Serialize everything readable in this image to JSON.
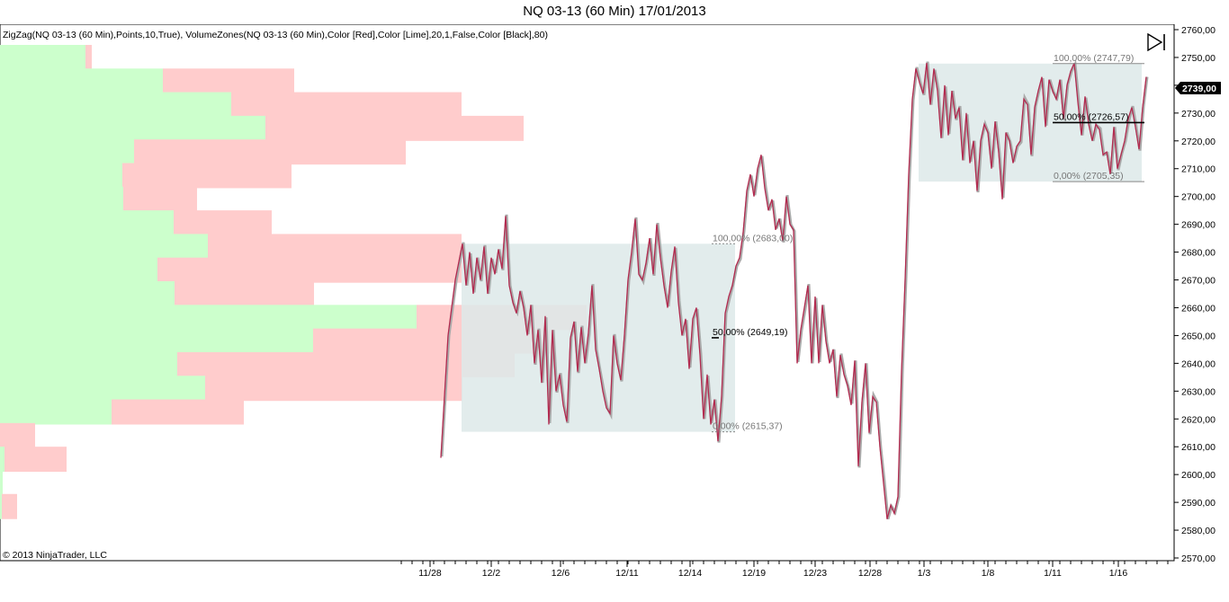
{
  "title": "NQ 03-13 (60 Min)  17/01/2013",
  "indicator_label": "ZigZag(NQ 03-13 (60 Min),Points,10,True), VolumeZones(NQ 03-13 (60 Min),Color [Red],Color [Lime],20,1,False,Color [Black],80)",
  "copyright": "© 2013 NinjaTrader, LLC",
  "icons": {
    "scroll_to_end": "play-to-end-icon"
  },
  "colors": {
    "zigzag": "#b22a4f",
    "price": "#aaaaaa",
    "zone_up": "#ccffcc",
    "zone_down": "#ffcccc",
    "fib_box": "#dde9e9",
    "current_price_bg": "#000000"
  },
  "chart_data": {
    "type": "line",
    "ylim": [
      2570,
      2760
    ],
    "y_ticks": [
      "2760,00",
      "2750,00",
      "2740,00",
      "2730,00",
      "2720,00",
      "2710,00",
      "2700,00",
      "2690,00",
      "2680,00",
      "2670,00",
      "2660,00",
      "2650,00",
      "2640,00",
      "2630,00",
      "2620,00",
      "2610,00",
      "2600,00",
      "2590,00",
      "2580,00",
      "2570,00"
    ],
    "x_ticks": [
      "11/28",
      "12/2",
      "12/6",
      "12/11",
      "12/14",
      "12/19",
      "12/23",
      "12/28",
      "1/3",
      "1/8",
      "1/11",
      "1/16"
    ],
    "current_price": "2739,00",
    "volume_zones": [
      {
        "price": 2750,
        "up": 95,
        "down": 7
      },
      {
        "price": 2741.5,
        "up": 181,
        "down": 146
      },
      {
        "price": 2733,
        "up": 257,
        "down": 256
      },
      {
        "price": 2724.5,
        "up": 295,
        "down": 287
      },
      {
        "price": 2716,
        "up": 149,
        "down": 302
      },
      {
        "price": 2707.5,
        "up": 136,
        "down": 188
      },
      {
        "price": 2699,
        "up": 137,
        "down": 82
      },
      {
        "price": 2690.5,
        "up": 193,
        "down": 109
      },
      {
        "price": 2682,
        "up": 231,
        "down": 282
      },
      {
        "price": 2673.5,
        "up": 175,
        "down": 338
      },
      {
        "price": 2665,
        "up": 194,
        "down": 155
      },
      {
        "price": 2656.5,
        "up": 463,
        "down": 189
      },
      {
        "price": 2648,
        "up": 348,
        "down": 265
      },
      {
        "price": 2639.5,
        "up": 197,
        "down": 375
      },
      {
        "price": 2631,
        "up": 228,
        "down": 286
      },
      {
        "price": 2622.5,
        "up": 124,
        "down": 147
      },
      {
        "price": 2614,
        "up": 0,
        "down": 39
      },
      {
        "price": 2605.5,
        "up": 5,
        "down": 69
      },
      {
        "price": 2597,
        "up": 3,
        "down": 0
      },
      {
        "price": 2588.5,
        "up": 2,
        "down": 17
      }
    ],
    "fibonacci": [
      {
        "levels": [
          {
            "pct": "100,00%",
            "value": 2683.0,
            "label": "100,00% (2683,00)"
          },
          {
            "pct": "50,00%",
            "value": 2649.19,
            "label": "50,00% (2649,19)"
          },
          {
            "pct": "0,00%",
            "value": 2615.37,
            "label": "0,00% (2615,37)"
          }
        ]
      },
      {
        "levels": [
          {
            "pct": "100,00%",
            "value": 2747.79,
            "label": "100,00% (2747,79)"
          },
          {
            "pct": "50,00%",
            "value": 2726.57,
            "label": "50,00% (2726,57)"
          },
          {
            "pct": "0,00%",
            "value": 2705.35,
            "label": "0,00% (2705,35)"
          }
        ]
      }
    ],
    "zigzag": [
      [
        490,
        2606
      ],
      [
        498,
        2650
      ],
      [
        506,
        2670
      ],
      [
        514,
        2683
      ],
      [
        518,
        2668
      ],
      [
        522,
        2680
      ],
      [
        526,
        2665
      ],
      [
        530,
        2678
      ],
      [
        534,
        2670
      ],
      [
        538,
        2682
      ],
      [
        542,
        2665
      ],
      [
        546,
        2678
      ],
      [
        550,
        2672
      ],
      [
        554,
        2681
      ],
      [
        558,
        2674
      ],
      [
        562,
        2693
      ],
      [
        566,
        2668
      ],
      [
        570,
        2662
      ],
      [
        574,
        2658
      ],
      [
        578,
        2666
      ],
      [
        582,
        2660
      ],
      [
        586,
        2650
      ],
      [
        590,
        2661
      ],
      [
        594,
        2640
      ],
      [
        598,
        2652
      ],
      [
        602,
        2633
      ],
      [
        606,
        2657
      ],
      [
        610,
        2618
      ],
      [
        614,
        2652
      ],
      [
        618,
        2630
      ],
      [
        622,
        2636
      ],
      [
        626,
        2625
      ],
      [
        630,
        2619
      ],
      [
        634,
        2649
      ],
      [
        638,
        2655
      ],
      [
        642,
        2637
      ],
      [
        646,
        2653
      ],
      [
        650,
        2640
      ],
      [
        654,
        2651
      ],
      [
        658,
        2668
      ],
      [
        662,
        2645
      ],
      [
        666,
        2638
      ],
      [
        670,
        2630
      ],
      [
        674,
        2624
      ],
      [
        678,
        2622
      ],
      [
        682,
        2650
      ],
      [
        686,
        2640
      ],
      [
        690,
        2634
      ],
      [
        694,
        2650
      ],
      [
        698,
        2670
      ],
      [
        702,
        2680
      ],
      [
        706,
        2692
      ],
      [
        710,
        2672
      ],
      [
        714,
        2670
      ],
      [
        718,
        2676
      ],
      [
        722,
        2685
      ],
      [
        726,
        2672
      ],
      [
        730,
        2690
      ],
      [
        734,
        2678
      ],
      [
        738,
        2668
      ],
      [
        742,
        2660
      ],
      [
        746,
        2673
      ],
      [
        750,
        2682
      ],
      [
        754,
        2662
      ],
      [
        758,
        2650
      ],
      [
        762,
        2656
      ],
      [
        766,
        2638
      ],
      [
        770,
        2656
      ],
      [
        774,
        2660
      ],
      [
        778,
        2643
      ],
      [
        782,
        2620
      ],
      [
        786,
        2636
      ],
      [
        790,
        2618
      ],
      [
        794,
        2627
      ],
      [
        798,
        2612
      ],
      [
        802,
        2628
      ],
      [
        806,
        2658
      ],
      [
        810,
        2664
      ],
      [
        814,
        2668
      ],
      [
        818,
        2675
      ],
      [
        822,
        2678
      ],
      [
        826,
        2687
      ],
      [
        830,
        2702
      ],
      [
        834,
        2708
      ],
      [
        838,
        2700
      ],
      [
        842,
        2710
      ],
      [
        846,
        2715
      ],
      [
        850,
        2703
      ],
      [
        854,
        2695
      ],
      [
        858,
        2699
      ],
      [
        862,
        2688
      ],
      [
        866,
        2692
      ],
      [
        870,
        2684
      ],
      [
        874,
        2700
      ],
      [
        878,
        2690
      ],
      [
        882,
        2688
      ],
      [
        886,
        2640
      ],
      [
        890,
        2652
      ],
      [
        894,
        2660
      ],
      [
        898,
        2668
      ],
      [
        902,
        2640
      ],
      [
        906,
        2664
      ],
      [
        910,
        2640
      ],
      [
        914,
        2661
      ],
      [
        918,
        2648
      ],
      [
        922,
        2640
      ],
      [
        926,
        2645
      ],
      [
        930,
        2628
      ],
      [
        934,
        2643
      ],
      [
        938,
        2636
      ],
      [
        942,
        2632
      ],
      [
        946,
        2625
      ],
      [
        950,
        2641
      ],
      [
        954,
        2603
      ],
      [
        958,
        2626
      ],
      [
        962,
        2640
      ],
      [
        966,
        2615
      ],
      [
        970,
        2628
      ],
      [
        974,
        2626
      ],
      [
        978,
        2610
      ],
      [
        982,
        2597
      ],
      [
        986,
        2584
      ],
      [
        990,
        2589
      ],
      [
        994,
        2586
      ],
      [
        998,
        2592
      ],
      [
        1002,
        2637
      ],
      [
        1006,
        2670
      ],
      [
        1010,
        2708
      ],
      [
        1014,
        2735
      ],
      [
        1018,
        2746
      ],
      [
        1022,
        2741
      ],
      [
        1026,
        2737
      ],
      [
        1030,
        2748
      ],
      [
        1034,
        2733
      ],
      [
        1038,
        2746
      ],
      [
        1042,
        2738
      ],
      [
        1046,
        2721
      ],
      [
        1050,
        2740
      ],
      [
        1054,
        2722
      ],
      [
        1058,
        2738
      ],
      [
        1062,
        2728
      ],
      [
        1066,
        2732
      ],
      [
        1070,
        2713
      ],
      [
        1074,
        2730
      ],
      [
        1078,
        2712
      ],
      [
        1082,
        2720
      ],
      [
        1086,
        2702
      ],
      [
        1090,
        2720
      ],
      [
        1094,
        2726
      ],
      [
        1098,
        2723
      ],
      [
        1102,
        2710
      ],
      [
        1106,
        2727
      ],
      [
        1110,
        2716
      ],
      [
        1114,
        2699
      ],
      [
        1118,
        2723
      ],
      [
        1122,
        2720
      ],
      [
        1126,
        2712
      ],
      [
        1130,
        2718
      ],
      [
        1134,
        2720
      ],
      [
        1138,
        2735
      ],
      [
        1142,
        2733
      ],
      [
        1146,
        2715
      ],
      [
        1150,
        2732
      ],
      [
        1154,
        2738
      ],
      [
        1158,
        2743
      ],
      [
        1162,
        2725
      ],
      [
        1166,
        2742
      ],
      [
        1170,
        2738
      ],
      [
        1174,
        2735
      ],
      [
        1178,
        2742
      ],
      [
        1182,
        2728
      ],
      [
        1186,
        2740
      ],
      [
        1190,
        2745
      ],
      [
        1194,
        2748
      ],
      [
        1198,
        2734
      ],
      [
        1202,
        2722
      ],
      [
        1206,
        2736
      ],
      [
        1210,
        2726
      ],
      [
        1214,
        2720
      ],
      [
        1218,
        2726
      ],
      [
        1222,
        2724
      ],
      [
        1226,
        2715
      ],
      [
        1230,
        2716
      ],
      [
        1234,
        2708
      ],
      [
        1238,
        2725
      ],
      [
        1242,
        2710
      ],
      [
        1246,
        2715
      ],
      [
        1250,
        2720
      ],
      [
        1254,
        2728
      ],
      [
        1258,
        2732
      ],
      [
        1262,
        2725
      ],
      [
        1266,
        2717
      ],
      [
        1270,
        2732
      ],
      [
        1274,
        2743
      ]
    ]
  }
}
